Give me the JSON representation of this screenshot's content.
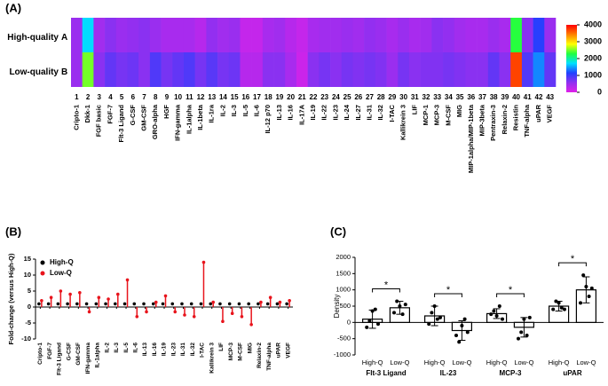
{
  "chart_data": [
    {
      "type": "heatmap",
      "panel_label": "(A)",
      "categories": [
        "Cripto-1",
        "Dkk-1",
        "FGF basic",
        "FGF-7",
        "Flt-3 Ligand",
        "G-CSF",
        "GM-CSF",
        "GRO-alpha",
        "HGF",
        "IFN-gamma",
        "IL-1alpha",
        "IL-1beta",
        "IL-1ra",
        "IL-2",
        "IL-3",
        "IL-5",
        "IL-6",
        "IL-12 p70",
        "IL-13",
        "IL-16",
        "IL-17A",
        "IL-19",
        "IL-22",
        "IL-23",
        "IL-24",
        "IL-27",
        "IL-31",
        "IL-32",
        "I-TAC",
        "Kallikrein 3",
        "LIF",
        "MCP-1",
        "MCP-3",
        "M-CSF",
        "MIG",
        "MIP-1alpha/MIP-1beta",
        "MIP-3beta",
        "Pentraxin-3",
        "Relaxin-2",
        "Resistin",
        "TNF-alpha",
        "uPAR",
        "VEGF"
      ],
      "column_numbers": [
        1,
        2,
        3,
        4,
        5,
        6,
        7,
        8,
        9,
        10,
        11,
        12,
        13,
        14,
        15,
        16,
        17,
        18,
        19,
        20,
        21,
        22,
        23,
        24,
        25,
        26,
        27,
        28,
        29,
        30,
        31,
        32,
        33,
        34,
        35,
        36,
        37,
        38,
        39,
        40,
        41,
        42,
        43
      ],
      "series": [
        {
          "name": "High-quality",
          "tag": "A",
          "values": [
            500,
            1700,
            450,
            600,
            500,
            550,
            600,
            500,
            400,
            400,
            400,
            300,
            550,
            450,
            500,
            200,
            200,
            400,
            450,
            300,
            200,
            400,
            450,
            450,
            500,
            450,
            550,
            500,
            400,
            500,
            400,
            450,
            600,
            550,
            450,
            400,
            400,
            500,
            400,
            2300,
            600,
            1100,
            500
          ]
        },
        {
          "name": "Low-quality",
          "tag": "B",
          "values": [
            500,
            2500,
            600,
            800,
            700,
            750,
            600,
            900,
            700,
            800,
            900,
            700,
            850,
            700,
            750,
            300,
            300,
            600,
            600,
            400,
            150,
            600,
            700,
            600,
            700,
            650,
            700,
            650,
            500,
            700,
            600,
            650,
            650,
            700,
            650,
            600,
            600,
            800,
            600,
            3700,
            900,
            1400,
            800
          ]
        }
      ],
      "clim": [
        0,
        4000
      ],
      "colorbar_ticks": [
        0,
        1000,
        2000,
        3000,
        4000
      ],
      "colormap": [
        "#e020e8",
        "#9030f0",
        "#2040ff",
        "#00e0ff",
        "#20ff40",
        "#ffff00",
        "#ff8000",
        "#ff0000"
      ]
    },
    {
      "type": "lollipop",
      "panel_label": "(B)",
      "y_label": "Fold-change (versus  High-Q)",
      "categories": [
        "Cripto-1",
        "FGF-7",
        "Flt-3 Ligand",
        "G-CSF",
        "GM-CSF",
        "IFN-gamma",
        "IL-1alpha",
        "IL-2",
        "IL-3",
        "IL-5",
        "IL-6",
        "IL-13",
        "IL-16",
        "IL-19",
        "IL-23",
        "IL-31",
        "IL-32",
        "I-TAC",
        "Kallikrein 3",
        "LIF",
        "MCP-3",
        "M-CSF",
        "MIG",
        "Relaxin-2",
        "TNF-alpha",
        "uPAR",
        "VEGF"
      ],
      "series": [
        {
          "name": "High-Q",
          "color": "#000000",
          "values": [
            1,
            1,
            1,
            1,
            1,
            1,
            1,
            1,
            1,
            1,
            1,
            1,
            1,
            1,
            1,
            1,
            1,
            1,
            1,
            1,
            1,
            1,
            1,
            1,
            1,
            1,
            1
          ]
        },
        {
          "name": "Low-Q",
          "color": "#e8141c",
          "values": [
            2,
            3,
            5,
            4,
            4.5,
            -1.5,
            3,
            2.5,
            4,
            8.5,
            -3,
            -1.5,
            1.5,
            3.5,
            -1.5,
            -2.5,
            -3,
            14,
            1.5,
            -4.5,
            -2,
            -3,
            -5.5,
            1.5,
            3,
            1.5,
            2
          ]
        }
      ],
      "ylim": [
        -10,
        15
      ],
      "yticks": [
        -10,
        -5,
        0,
        5,
        10,
        15
      ],
      "legend": "top-left"
    },
    {
      "type": "bar",
      "panel_label": "(C)",
      "y_label": "Density",
      "categories": [
        "Flt-3 Ligand",
        "IL-23",
        "MCP-3",
        "uPAR"
      ],
      "series": [
        {
          "name": "High-Q",
          "values": [
            100,
            200,
            270,
            500
          ],
          "errors": [
            280,
            300,
            150,
            150
          ],
          "points": [
            [
              -150,
              50,
              350,
              400,
              -50
            ],
            [
              -50,
              300,
              500,
              100,
              150
            ],
            [
              250,
              350,
              200,
              500,
              100
            ],
            [
              400,
              650,
              600,
              450,
              400
            ]
          ]
        },
        {
          "name": "Low-Q",
          "values": [
            450,
            -250,
            -150,
            1000
          ],
          "errors": [
            200,
            300,
            300,
            400
          ],
          "points": [
            [
              300,
              650,
              500,
              250,
              550
            ],
            [
              -400,
              -600,
              -100,
              100,
              -300
            ],
            [
              -500,
              -300,
              100,
              -400,
              150
            ],
            [
              600,
              1450,
              1100,
              800,
              1050
            ]
          ]
        }
      ],
      "significance": [
        "*",
        "*",
        "*",
        "*"
      ],
      "ylim": [
        -1000,
        2000
      ],
      "yticks": [
        -1000,
        -500,
        0,
        500,
        1000,
        1500,
        2000
      ]
    }
  ]
}
